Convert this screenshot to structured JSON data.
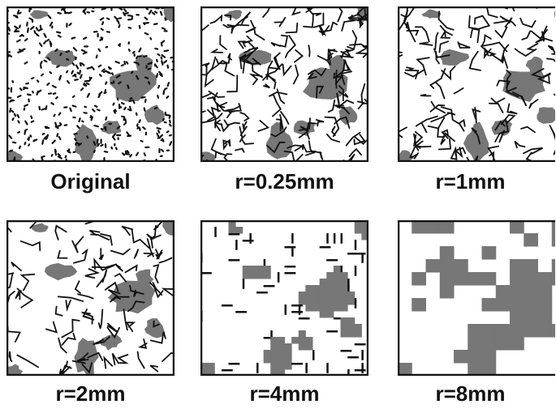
{
  "panels": [
    {
      "label": "Original"
    },
    {
      "label": "r=0.25mm"
    },
    {
      "label": "r=1mm"
    },
    {
      "label": "r=2mm"
    },
    {
      "label": "r=4mm"
    },
    {
      "label": "r=8mm"
    }
  ]
}
